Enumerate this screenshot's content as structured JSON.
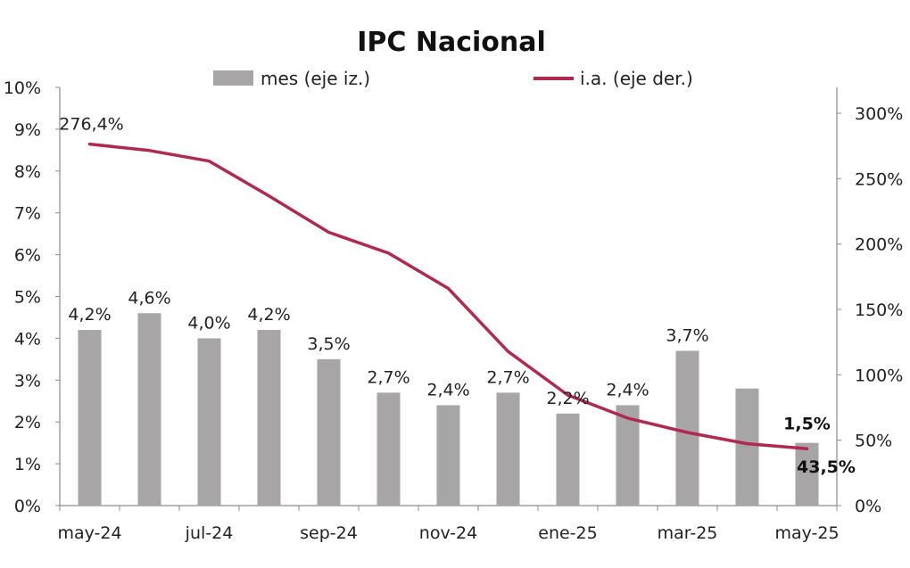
{
  "chart_data": {
    "type": "bar+line",
    "title": "IPC Nacional",
    "categories": [
      "may-24",
      "jun-24",
      "jul-24",
      "ago-24",
      "sep-24",
      "oct-24",
      "nov-24",
      "dic-24",
      "ene-25",
      "feb-25",
      "mar-25",
      "abr-25",
      "may-25"
    ],
    "x_tick_labels": [
      "may-24",
      "jul-24",
      "sep-24",
      "nov-24",
      "ene-25",
      "mar-25",
      "may-25"
    ],
    "series": [
      {
        "name": "mes (eje iz.)",
        "type": "bar",
        "axis": "left",
        "color": "#a7a5a6",
        "values": [
          4.2,
          4.6,
          4.0,
          4.2,
          3.5,
          2.7,
          2.4,
          2.7,
          2.2,
          2.4,
          3.7,
          2.8,
          1.5
        ],
        "data_labels": [
          "4,2%",
          "4,6%",
          "4,0%",
          "4,2%",
          "3,5%",
          "2,7%",
          "2,4%",
          "2,7%",
          "2,2%",
          "2,4%",
          "3,7%",
          "",
          "1,5%"
        ]
      },
      {
        "name": "i.a. (eje der.)",
        "type": "line",
        "axis": "right",
        "color": "#b0294f",
        "values": [
          276.4,
          271.5,
          263.4,
          236.7,
          209.0,
          193.0,
          166.0,
          117.8,
          84.5,
          66.9,
          55.9,
          47.3,
          43.5
        ],
        "data_labels": [
          "276,4%",
          "",
          "",
          "",
          "",
          "",
          "",
          "",
          "",
          "",
          "",
          "",
          "43,5%"
        ]
      }
    ],
    "y_left": {
      "min": 0,
      "max": 10,
      "ticks": [
        "0%",
        "1%",
        "2%",
        "3%",
        "4%",
        "5%",
        "6%",
        "7%",
        "8%",
        "9%",
        "10%"
      ]
    },
    "y_right": {
      "min": 0,
      "max": 320,
      "ticks": [
        "0%",
        "50%",
        "100%",
        "150%",
        "200%",
        "250%",
        "300%"
      ]
    },
    "legend": "top-center"
  }
}
